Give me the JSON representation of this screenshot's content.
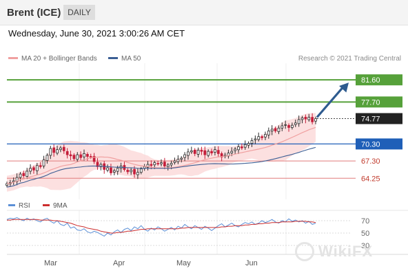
{
  "header": {
    "instrument": "Brent (ICE)",
    "interval": "DAILY"
  },
  "datetime": "Wednesday, June 30, 2021 3:00:26 AM CET",
  "legend": {
    "ma20_label": "MA 20 + Bollinger Bands",
    "ma50_label": "MA 50"
  },
  "credit": "Research © 2021 Trading Central",
  "rsi_legend": {
    "rsi_label": "RSI",
    "ma_label": "9MA"
  },
  "watermark": "WikiFX",
  "colors": {
    "up": "#2a2a2a",
    "down": "#c41e3a",
    "ma20": "#f0a0a0",
    "bands": "#fbd6d6",
    "ma50": "#3b5e94",
    "resistance": "#56a13a",
    "pivot": "#1f5fb8",
    "support": "#e07a7a",
    "arrow": "#2e5b8f",
    "rsi": "#5b8fd6",
    "rsi_ma": "#cc2d2d"
  },
  "chart_data": [
    {
      "type": "candlestick",
      "ylim": [
        61.5,
        83.8
      ],
      "x_ticks": [
        "Mar",
        "Apr",
        "May",
        "Jun"
      ],
      "closes": [
        63.3,
        63.5,
        63.8,
        64.4,
        65.0,
        64.7,
        65.5,
        66.0,
        65.7,
        66.5,
        66.3,
        67.5,
        68.3,
        69.5,
        68.8,
        69.3,
        69.6,
        69.1,
        68.4,
        68.2,
        67.7,
        68.4,
        67.9,
        68.6,
        68.1,
        68.0,
        67.2,
        66.3,
        66.7,
        65.8,
        66.1,
        65.2,
        65.6,
        66.0,
        66.4,
        65.8,
        65.4,
        65.7,
        65.0,
        65.3,
        65.9,
        66.3,
        66.7,
        66.5,
        67.0,
        66.8,
        67.0,
        66.4,
        66.6,
        66.9,
        67.3,
        67.6,
        67.8,
        68.4,
        68.9,
        69.1,
        68.6,
        69.2,
        69.0,
        68.4,
        69.0,
        68.7,
        69.3,
        68.6,
        68.0,
        68.3,
        68.7,
        69.0,
        69.4,
        69.8,
        69.6,
        70.2,
        70.4,
        70.9,
        71.2,
        71.6,
        71.4,
        72.0,
        72.6,
        72.9,
        72.6,
        73.1,
        73.5,
        73.7,
        73.2,
        73.6,
        74.0,
        74.6,
        74.9,
        74.7,
        75.0,
        74.2,
        74.77
      ],
      "levels": [
        {
          "label": "81.60",
          "value": 81.6,
          "kind": "resistance"
        },
        {
          "label": "77.70",
          "value": 77.7,
          "kind": "resistance"
        },
        {
          "label": "74.77",
          "value": 74.77,
          "kind": "last"
        },
        {
          "label": "70.30",
          "value": 70.3,
          "kind": "pivot"
        },
        {
          "label": "67.30",
          "value": 67.3,
          "kind": "support"
        },
        {
          "label": "64.25",
          "value": 64.25,
          "kind": "support"
        }
      ],
      "target": 81.6
    },
    {
      "type": "line",
      "ylim": [
        20,
        80
      ],
      "y_ticks": [
        70,
        50,
        30
      ],
      "series": [
        {
          "name": "RSI",
          "values": [
            72,
            74,
            73,
            75,
            72,
            70,
            74,
            71,
            73,
            70,
            68,
            72,
            74,
            69,
            66,
            70,
            64,
            62,
            66,
            58,
            60,
            55,
            54,
            57,
            52,
            50,
            53,
            51,
            48,
            45,
            50,
            47,
            52,
            55,
            51,
            56,
            58,
            54,
            60,
            57,
            62,
            56,
            53,
            58,
            55,
            60,
            57,
            53,
            56,
            59,
            55,
            61,
            58,
            64,
            60,
            57,
            62,
            59,
            56,
            61,
            58,
            54,
            58,
            62,
            65,
            60,
            63,
            66,
            62,
            60,
            64,
            67,
            65,
            68,
            64,
            66,
            70,
            67,
            69,
            72,
            68,
            66,
            70,
            68,
            73,
            69,
            71,
            68,
            70,
            66,
            69,
            64,
            66
          ]
        },
        {
          "name": "9MA",
          "values": [
            71,
            71,
            72,
            72,
            72,
            72,
            72,
            72,
            72,
            72,
            71,
            71,
            71,
            71,
            70,
            70,
            69,
            68,
            67,
            66,
            64,
            62,
            61,
            60,
            58,
            57,
            56,
            55,
            53,
            52,
            51,
            50,
            50,
            51,
            51,
            52,
            53,
            53,
            54,
            55,
            56,
            56,
            57,
            57,
            57,
            57,
            57,
            57,
            57,
            57,
            57,
            57,
            58,
            58,
            59,
            59,
            59,
            59,
            59,
            59,
            59,
            59,
            59,
            59,
            60,
            60,
            61,
            61,
            62,
            62,
            62,
            63,
            63,
            64,
            64,
            65,
            65,
            66,
            66,
            67,
            67,
            67,
            68,
            68,
            68,
            68,
            69,
            69,
            69,
            69,
            68,
            68,
            67
          ]
        }
      ]
    }
  ]
}
